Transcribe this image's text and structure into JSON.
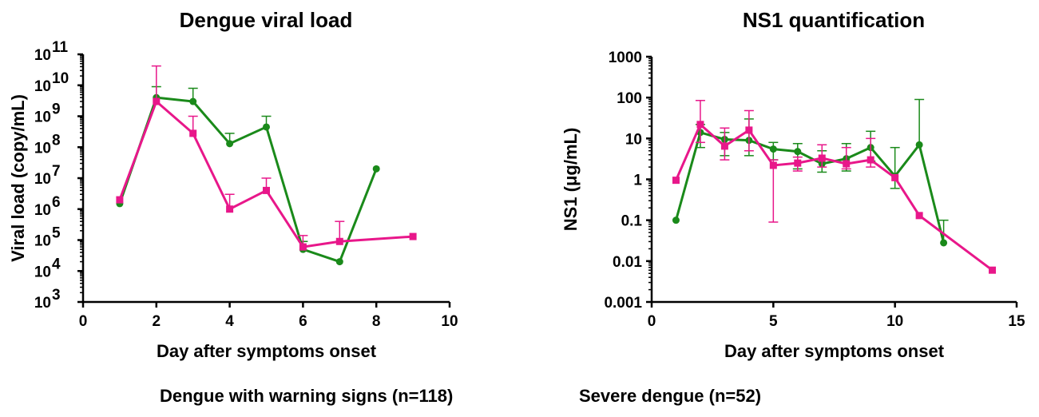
{
  "colors": {
    "warning": "#1a8a1a",
    "severe": "#e8178a"
  },
  "legend": {
    "warning": "Dengue with warning signs (n=118)",
    "severe": "Severe dengue (n=52)"
  },
  "chart_data": [
    {
      "type": "line",
      "title": "Dengue viral load",
      "xlabel": "Day after symptoms onset",
      "ylabel": "Viral load (copy/mL)",
      "xlim": [
        0,
        10
      ],
      "ylim": [
        1000,
        100000000000
      ],
      "yscale": "log",
      "xticks": [
        0,
        2,
        4,
        6,
        8,
        10
      ],
      "yticks": [
        1000,
        10000,
        100000,
        1000000,
        10000000,
        100000000,
        1000000000,
        10000000000,
        100000000000
      ],
      "ytick_exponents": [
        "3",
        "4",
        "5",
        "6",
        "7",
        "8",
        "9",
        "10",
        "11"
      ],
      "grid": false,
      "series": [
        {
          "name": "Dengue with warning signs (n=118)",
          "marker": "circle",
          "x": [
            1,
            2,
            3,
            4,
            5,
            6,
            7,
            8
          ],
          "y": [
            1500000,
            4000000000,
            3000000000,
            130000000,
            450000000,
            50000,
            20000,
            20000000
          ],
          "yerr_upper": [
            null,
            9000000000,
            8000000000,
            280000000,
            1000000000,
            90000,
            null,
            null
          ]
        },
        {
          "name": "Severe dengue (n=52)",
          "marker": "square",
          "x": [
            1,
            2,
            3,
            4,
            5,
            6,
            7,
            9
          ],
          "y": [
            2000000,
            3000000000,
            280000000,
            1000000,
            4000000,
            60000,
            90000,
            130000
          ],
          "yerr_upper": [
            null,
            42000000000,
            1000000000,
            3000000,
            10000000,
            140000,
            400000,
            null
          ]
        }
      ]
    },
    {
      "type": "line",
      "title": "NS1 quantification",
      "xlabel": "Day after symptoms onset",
      "ylabel": "NS1 (μg/mL)",
      "xlim": [
        0,
        15
      ],
      "ylim": [
        0.001,
        1000
      ],
      "yscale": "log",
      "xticks": [
        0,
        5,
        10,
        15
      ],
      "yticks": [
        0.001,
        0.01,
        0.1,
        1,
        10,
        100,
        1000
      ],
      "ytick_labels": [
        "0.001",
        "0.01",
        "0.1",
        "1",
        "10",
        "100",
        "1000"
      ],
      "grid": false,
      "series": [
        {
          "name": "Dengue with warning signs (n=118)",
          "marker": "circle",
          "x": [
            1,
            2,
            3,
            4,
            5,
            6,
            7,
            8,
            9,
            10,
            11,
            12
          ],
          "y": [
            0.1,
            14,
            9.5,
            9,
            5.5,
            4.8,
            2.4,
            3.2,
            6,
            1.2,
            7,
            0.028
          ],
          "yerr_lower": [
            null,
            6,
            3.8,
            3.8,
            3,
            1.8,
            1.5,
            1.6,
            2.8,
            0.6,
            null,
            null
          ],
          "yerr_upper": [
            null,
            22,
            14,
            30,
            8,
            7.5,
            5,
            7.5,
            15,
            6,
            90,
            0.1
          ]
        },
        {
          "name": "Severe dengue (n=52)",
          "marker": "square",
          "x": [
            1,
            2,
            3,
            4,
            5,
            6,
            7,
            8,
            9,
            10,
            11,
            14
          ],
          "y": [
            0.95,
            22,
            6.5,
            16,
            2.2,
            2.5,
            3.3,
            2.4,
            3,
            1.1,
            0.13,
            0.006
          ],
          "yerr_lower": [
            null,
            8,
            3,
            5,
            0.09,
            1.6,
            2,
            1.8,
            2,
            null,
            null,
            null
          ],
          "yerr_upper": [
            null,
            85,
            18,
            48,
            3,
            3.5,
            7,
            6,
            10,
            null,
            null,
            null
          ]
        }
      ]
    }
  ]
}
